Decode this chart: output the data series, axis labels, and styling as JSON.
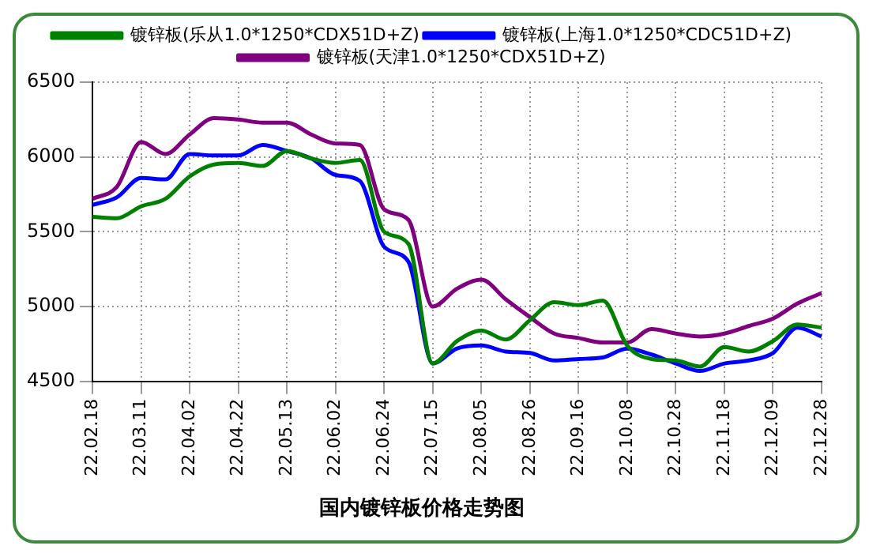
{
  "chart_data": {
    "type": "line",
    "title": "国内镀锌板价格走势图",
    "categories": [
      "22.02.18",
      null,
      "22.03.11",
      null,
      "22.04.02",
      null,
      "22.04.22",
      null,
      "22.05.13",
      null,
      "22.06.02",
      null,
      "22.06.24",
      null,
      "22.07.15",
      null,
      "22.08.05",
      null,
      "22.08.26",
      null,
      "22.09.16",
      null,
      "22.10.08",
      null,
      "22.10.28",
      null,
      "22.11.18",
      null,
      "22.12.09",
      null,
      "22.12.28"
    ],
    "series": [
      {
        "name": "镀锌板(乐从1.0*1250*CDX51D+Z)",
        "color": "#008000",
        "values": [
          5600,
          5590,
          5670,
          5720,
          5870,
          5950,
          5960,
          5940,
          6040,
          5990,
          5960,
          5980,
          5500,
          5420,
          4620,
          4770,
          4840,
          4780,
          4910,
          5030,
          5010,
          5040,
          4740,
          4650,
          4640,
          4600,
          4730,
          4700,
          4770,
          4880,
          4860
        ]
      },
      {
        "name": "镀锌板(上海1.0*1250*CDC51D+Z)",
        "color": "#0000ff",
        "values": [
          5680,
          5730,
          5860,
          5850,
          6020,
          6010,
          6010,
          6080,
          6040,
          5990,
          5880,
          5840,
          5400,
          5300,
          4620,
          4720,
          4740,
          4700,
          4690,
          4640,
          4650,
          4660,
          4720,
          4680,
          4620,
          4570,
          4620,
          4640,
          4690,
          4860,
          4800
        ]
      },
      {
        "name": "镀锌板(天津1.0*1250*CDX51D+Z)",
        "color": "#800080",
        "values": [
          5720,
          5800,
          6100,
          6020,
          6150,
          6260,
          6250,
          6230,
          6230,
          6150,
          6090,
          6080,
          5650,
          5580,
          5000,
          5120,
          5180,
          5050,
          4930,
          4820,
          4790,
          4760,
          4760,
          4850,
          4820,
          4800,
          4820,
          4870,
          4920,
          5020,
          5090
        ]
      }
    ],
    "ylim": [
      4500,
      6500
    ],
    "yticks": [
      4500,
      5000,
      5500,
      6000,
      6500
    ],
    "grid": true,
    "legend": "top",
    "marker": "none",
    "line_style": "solid"
  }
}
